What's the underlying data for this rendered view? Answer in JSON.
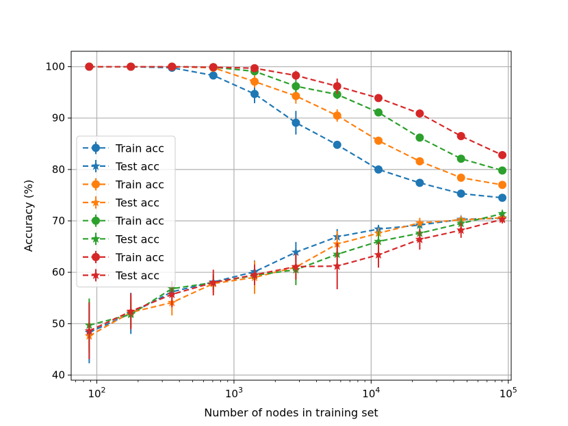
{
  "chart_data": {
    "type": "line",
    "xlabel": "Number of nodes in training set",
    "ylabel": "Accuracy (%)",
    "x_scale": "log",
    "xlim": [
      65,
      105000
    ],
    "ylim": [
      39,
      103
    ],
    "x_ticks": [
      100,
      1000,
      10000,
      100000
    ],
    "x_tick_labels": [
      {
        "base": "10",
        "exp": "2"
      },
      {
        "base": "10",
        "exp": "3"
      },
      {
        "base": "10",
        "exp": "4"
      },
      {
        "base": "10",
        "exp": "5"
      }
    ],
    "y_ticks": [
      40,
      50,
      60,
      70,
      80,
      90,
      100
    ],
    "y_tick_labels": [
      "40",
      "50",
      "60",
      "70",
      "80",
      "90",
      "100"
    ],
    "grid": true,
    "legend_position": "center-left",
    "x": [
      88,
      177,
      353,
      707,
      1413,
      2827,
      5654,
      11308,
      22616,
      45232,
      90464
    ],
    "series": [
      {
        "name": "Train acc",
        "color": "#1f77b4",
        "marker": "circle",
        "values": [
          100,
          100,
          99.8,
          98.3,
          94.7,
          89.1,
          84.8,
          80.0,
          77.4,
          75.3,
          74.5
        ],
        "errors": [
          0,
          0,
          0.3,
          0.6,
          1.8,
          2.3,
          0.6,
          0.4,
          0.4,
          0.3,
          0.2
        ]
      },
      {
        "name": "Test acc",
        "color": "#1f77b4",
        "marker": "star",
        "values": [
          48.3,
          52.0,
          56.2,
          58.1,
          60.1,
          63.9,
          66.9,
          68.4,
          69.2,
          70.3,
          70.5
        ],
        "errors": [
          6.0,
          4.0,
          1.5,
          1.5,
          2.2,
          2.0,
          1.5,
          0.8,
          0.6,
          0.6,
          0.4
        ]
      },
      {
        "name": "Train acc",
        "color": "#ff7f0e",
        "marker": "circle",
        "values": [
          100,
          100,
          100,
          99.8,
          97.1,
          94.3,
          90.5,
          85.6,
          81.6,
          78.4,
          77.0
        ],
        "errors": [
          0,
          0,
          0,
          0.2,
          1.2,
          1.5,
          1.2,
          0.6,
          0.4,
          0.4,
          0.3
        ]
      },
      {
        "name": "Test acc",
        "color": "#ff7f0e",
        "marker": "star",
        "values": [
          47.6,
          52.2,
          54.1,
          57.8,
          59.0,
          61.0,
          65.5,
          67.6,
          69.6,
          70.2,
          70.6
        ],
        "errors": [
          2.5,
          3.0,
          2.5,
          1.7,
          3.2,
          2.5,
          2.5,
          1.0,
          1.0,
          0.6,
          0.5
        ]
      },
      {
        "name": "Train acc",
        "color": "#2ca02c",
        "marker": "circle",
        "values": [
          100,
          100,
          100,
          99.9,
          99.1,
          96.2,
          94.6,
          91.1,
          86.2,
          82.1,
          79.8
        ],
        "errors": [
          0,
          0,
          0,
          0.1,
          0.5,
          1.2,
          0.9,
          0.5,
          0.3,
          0.3,
          0.2
        ]
      },
      {
        "name": "Test acc",
        "color": "#2ca02c",
        "marker": "star",
        "values": [
          49.7,
          51.8,
          56.8,
          58.0,
          59.4,
          60.5,
          63.5,
          66.0,
          67.6,
          69.5,
          71.4
        ],
        "errors": [
          5.2,
          2.5,
          1.5,
          1.2,
          1.5,
          3.0,
          2.0,
          2.0,
          1.5,
          1.0,
          0.6
        ]
      },
      {
        "name": "Train acc",
        "color": "#d62728",
        "marker": "circle",
        "values": [
          100,
          100,
          100,
          99.9,
          99.7,
          98.3,
          96.2,
          93.9,
          90.9,
          86.5,
          82.8
        ],
        "errors": [
          0,
          0,
          0,
          0.1,
          0.3,
          0.9,
          1.5,
          0.5,
          0.3,
          0.2,
          0.2
        ]
      },
      {
        "name": "Test acc",
        "color": "#d62728",
        "marker": "star",
        "values": [
          48.6,
          52.4,
          55.7,
          58.0,
          59.5,
          61.1,
          61.2,
          63.4,
          66.4,
          68.2,
          70.3
        ],
        "errors": [
          5.5,
          3.5,
          2.5,
          2.5,
          2.0,
          2.5,
          4.5,
          2.5,
          2.0,
          1.5,
          0.8
        ]
      }
    ]
  }
}
